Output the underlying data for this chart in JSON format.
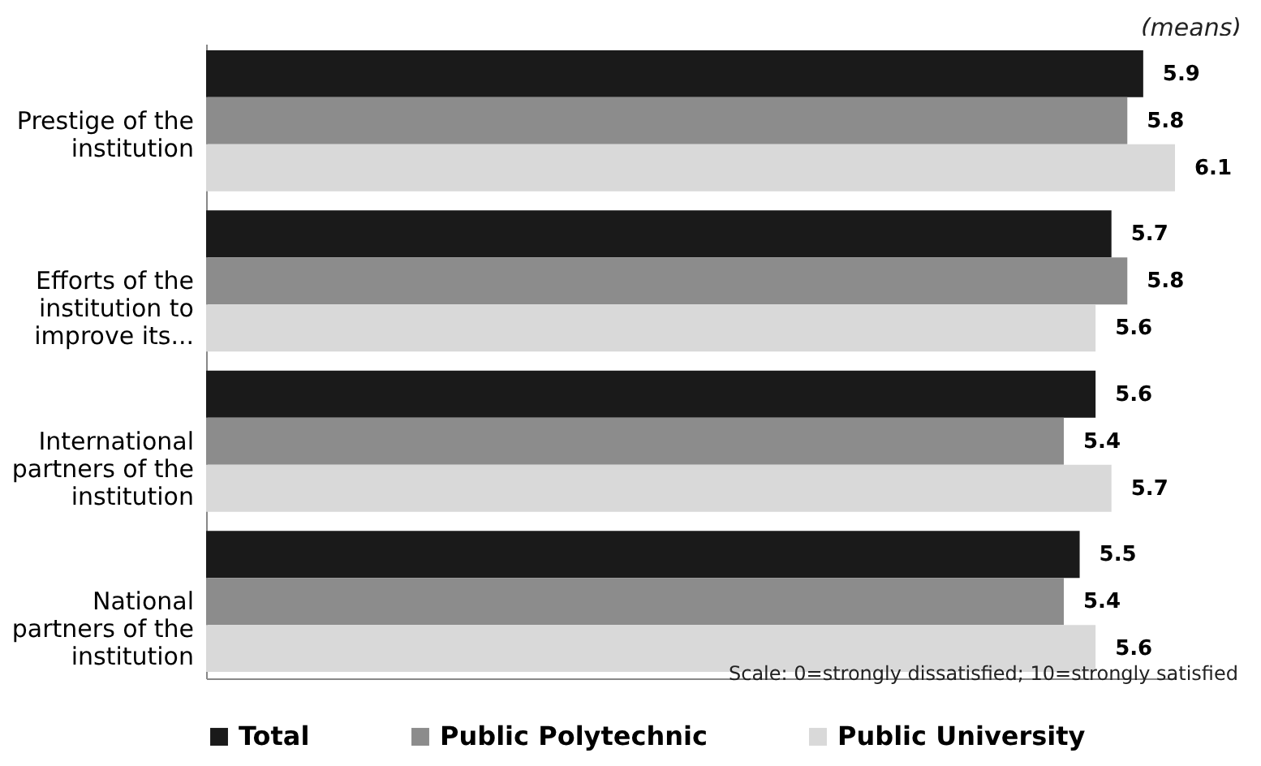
{
  "chart_data": {
    "type": "bar",
    "orientation": "horizontal",
    "categories": [
      "Prestige of the institution",
      "Efforts of the institution to improve its...",
      "International partners of the institution",
      "National partners of the institution"
    ],
    "series": [
      {
        "name": "Total",
        "color": "#1a1a1a",
        "values": [
          5.9,
          5.7,
          5.6,
          5.5
        ]
      },
      {
        "name": "Public Polytechnic",
        "color": "#8c8c8c",
        "values": [
          5.8,
          5.8,
          5.4,
          5.4
        ]
      },
      {
        "name": "Public University",
        "color": "#d9d9d9",
        "values": [
          6.1,
          5.6,
          5.7,
          5.6
        ]
      }
    ],
    "tick_labels": "y",
    "data_labels": true,
    "legend": "bottom",
    "annotations": [
      "(means)",
      "Scale: 0=strongly dissatisfied;  10=strongly satisfied"
    ]
  }
}
